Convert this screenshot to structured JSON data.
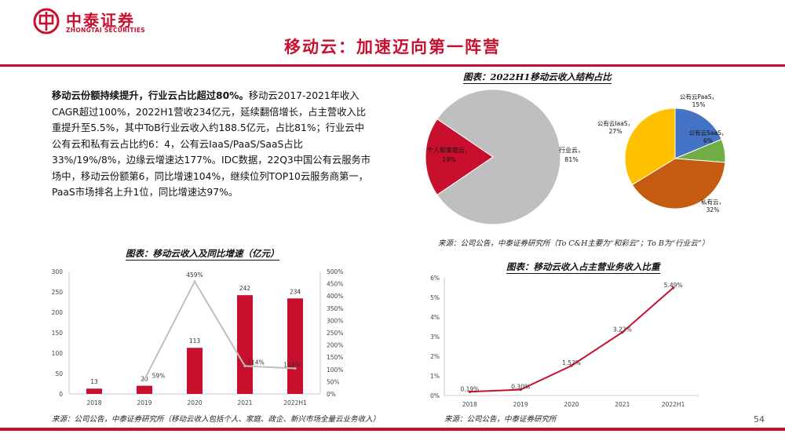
{
  "header": {
    "logo_cn": "中泰证券",
    "logo_en": "ZHONGTAI SECURITIES",
    "page_title": "移动云：加速迈向第一阵营",
    "brand_color": "#c8102e"
  },
  "text": {
    "lead_bold": "移动云份额持续提升，行业云占比超过80%。",
    "body": "移动云2017-2021年收入CAGR超过100%，2022H1营收234亿元，延续翻倍增长，占主营收入比重提升至5.5%，其中ToB行业云收入约188.5亿元，占比81%；行业云中公有云和私有云占比约6：4，公有云IaaS/PaaS/SaaS占比33%/19%/8%，边缘云增速达177%。IDC数据，22Q3中国公有云服务市场中，移动云份额第6，同比增速104%，继续位列TOP10云服务商第一，PaaS市场排名上升1位，同比增速达97%。"
  },
  "chart_titles": {
    "pie": "图表：2022H1移动云收入结构占比",
    "bar": "图表：移动云收入及同比增速（亿元）",
    "line": "图表：移动云收入占主营业务收入比重"
  },
  "sources": {
    "pie": "来源：公司公告，中泰证券研究所（To C&H主要为“和彩云”；To B为“行业云”）",
    "bar": "来源：公司公告，中泰证券研究所（移动云收入包括个人、家庭、政企、新兴市场全量云业务收入）",
    "line": "来源：公司公告，中泰证券研究所"
  },
  "page_number": "54",
  "chart_data": [
    {
      "type": "pie",
      "slices": [
        {
          "name": "个人和家庭云，",
          "label_pct": "19%",
          "value": 19,
          "color": "#c8102e"
        },
        {
          "name": "行业云，",
          "label_pct": "81%",
          "value": 81,
          "color": "#bfbfbf"
        }
      ],
      "breakdown": {
        "type": "pie",
        "of": "行业云",
        "slices": [
          {
            "name": "公有云PaaS，",
            "label_pct": "15%",
            "value": 15,
            "color": "#4472c4"
          },
          {
            "name": "公有云SaaS，",
            "label_pct": "6%",
            "value": 6,
            "color": "#70ad47"
          },
          {
            "name": "私有云，",
            "label_pct": "32%",
            "value": 32,
            "color": "#c55a11"
          },
          {
            "name": "公有云IaaS，",
            "label_pct": "27%",
            "value": 27,
            "color": "#ffc000"
          }
        ]
      }
    },
    {
      "type": "bar",
      "categories": [
        "2018",
        "2019",
        "2020",
        "2021",
        "2022H1"
      ],
      "series": [
        {
          "kind": "bar",
          "axis": "left",
          "values": [
            13,
            20,
            113,
            242,
            234
          ],
          "color": "#c8102e"
        },
        {
          "kind": "line",
          "axis": "right",
          "values": [
            null,
            59,
            459,
            114,
            104
          ],
          "labels": [
            "",
            "59%",
            "459%",
            "114%",
            "104%"
          ],
          "color": "#bfbfbf"
        }
      ],
      "ylim": [
        0,
        300
      ],
      "yticks": [
        "0",
        "50",
        "100",
        "150",
        "200",
        "250",
        "300"
      ],
      "y2lim": [
        0,
        500
      ],
      "y2ticks": [
        "0%",
        "50%",
        "100%",
        "150%",
        "200%",
        "250%",
        "300%",
        "350%",
        "400%",
        "450%",
        "500%"
      ],
      "grid": false
    },
    {
      "type": "line",
      "categories": [
        "2018",
        "2019",
        "2020",
        "2021",
        "2022H1"
      ],
      "values": [
        0.19,
        0.3,
        1.52,
        3.22,
        5.49
      ],
      "labels": [
        "0.19%",
        "0.30%",
        "1.52%",
        "3.22%",
        "5.49%"
      ],
      "ylim": [
        0,
        6
      ],
      "yticks": [
        "0%",
        "1%",
        "2%",
        "3%",
        "4%",
        "5%",
        "6%"
      ],
      "color": "#c8102e",
      "grid": false
    }
  ]
}
